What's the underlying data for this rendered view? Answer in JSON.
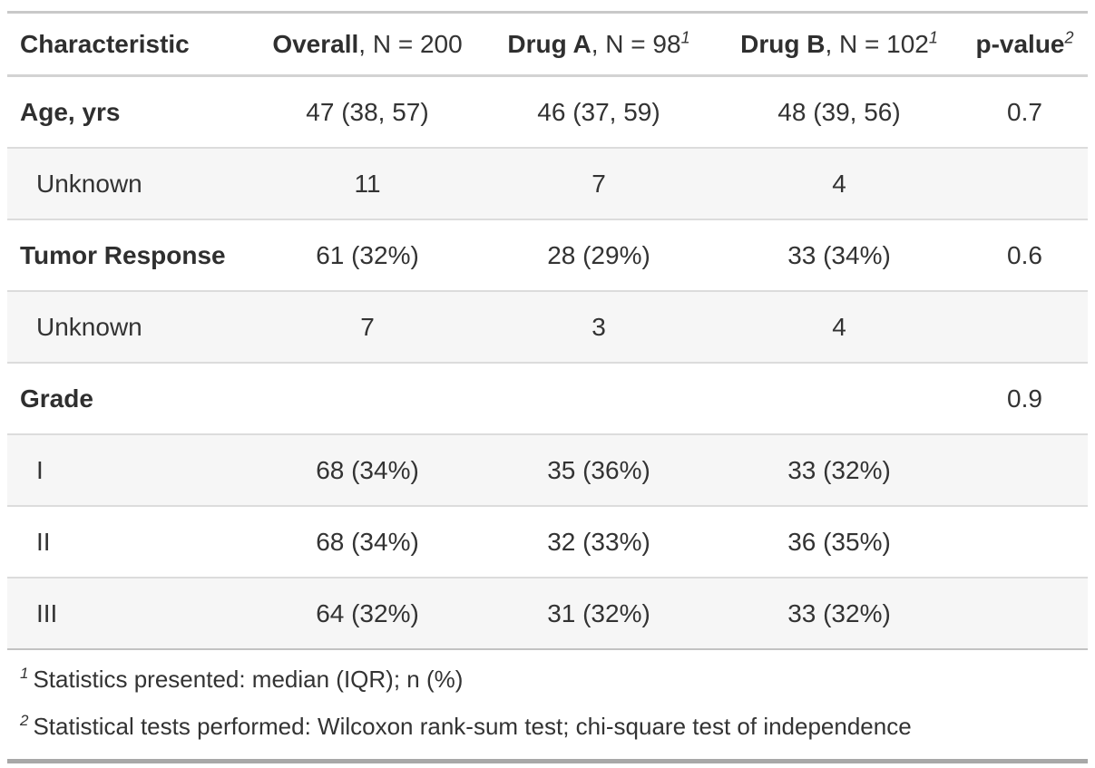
{
  "table": {
    "columns": [
      {
        "bold": "Characteristic",
        "rest": "",
        "sup": ""
      },
      {
        "bold": "Overall",
        "rest": ", N = 200",
        "sup": ""
      },
      {
        "bold": "Drug A",
        "rest": ", N = 98",
        "sup": "1"
      },
      {
        "bold": "Drug B",
        "rest": ", N = 102",
        "sup": "1"
      },
      {
        "bold": "p-value",
        "rest": "",
        "sup": "2"
      }
    ],
    "rows": [
      {
        "label": "Age, yrs",
        "overall": "47 (38, 57)",
        "drug_a": "46 (37, 59)",
        "drug_b": "48 (39, 56)",
        "p": "0.7"
      },
      {
        "label": "Unknown",
        "overall": "11",
        "drug_a": "7",
        "drug_b": "4",
        "p": ""
      },
      {
        "label": "Tumor Response",
        "overall": "61 (32%)",
        "drug_a": "28 (29%)",
        "drug_b": "33 (34%)",
        "p": "0.6"
      },
      {
        "label": "Unknown",
        "overall": "7",
        "drug_a": "3",
        "drug_b": "4",
        "p": ""
      },
      {
        "label": "Grade",
        "overall": "",
        "drug_a": "",
        "drug_b": "",
        "p": "0.9"
      },
      {
        "label": "I",
        "overall": "68 (34%)",
        "drug_a": "35 (36%)",
        "drug_b": "33 (32%)",
        "p": ""
      },
      {
        "label": "II",
        "overall": "68 (34%)",
        "drug_a": "32 (33%)",
        "drug_b": "36 (35%)",
        "p": ""
      },
      {
        "label": "III",
        "overall": "64 (32%)",
        "drug_a": "31 (32%)",
        "drug_b": "33 (32%)",
        "p": ""
      }
    ],
    "footnotes": [
      {
        "marker": "1",
        "text": "Statistics presented: median (IQR); n (%)"
      },
      {
        "marker": "2",
        "text": "Statistical tests performed: Wilcoxon rank-sum test; chi-square test of independence"
      }
    ]
  },
  "colors": {
    "text": "#333333",
    "stripe": "#f6f6f6",
    "border_light": "#dcdcdc",
    "border_header": "#d3d3d3",
    "border_top": "#c9c9c9",
    "border_bottom": "#a8a8a8"
  },
  "chart_data": {
    "type": "table",
    "title": "Summary table: Drug A vs Drug B",
    "columns": [
      "Characteristic",
      "Overall, N = 200",
      "Drug A, N = 98",
      "Drug B, N = 102",
      "p-value"
    ],
    "rows": [
      [
        "Age, yrs",
        "47 (38, 57)",
        "46 (37, 59)",
        "48 (39, 56)",
        "0.7"
      ],
      [
        "Unknown",
        "11",
        "7",
        "4",
        ""
      ],
      [
        "Tumor Response",
        "61 (32%)",
        "28 (29%)",
        "33 (34%)",
        "0.6"
      ],
      [
        "Unknown",
        "7",
        "3",
        "4",
        ""
      ],
      [
        "Grade",
        "",
        "",
        "",
        "0.9"
      ],
      [
        "I",
        "68 (34%)",
        "35 (36%)",
        "33 (32%)",
        ""
      ],
      [
        "II",
        "68 (34%)",
        "32 (33%)",
        "36 (35%)",
        ""
      ],
      [
        "III",
        "64 (32%)",
        "31 (32%)",
        "33 (32%)",
        ""
      ]
    ],
    "footnotes": [
      "1 Statistics presented: median (IQR); n (%)",
      "2 Statistical tests performed: Wilcoxon rank-sum test; chi-square test of independence"
    ]
  }
}
